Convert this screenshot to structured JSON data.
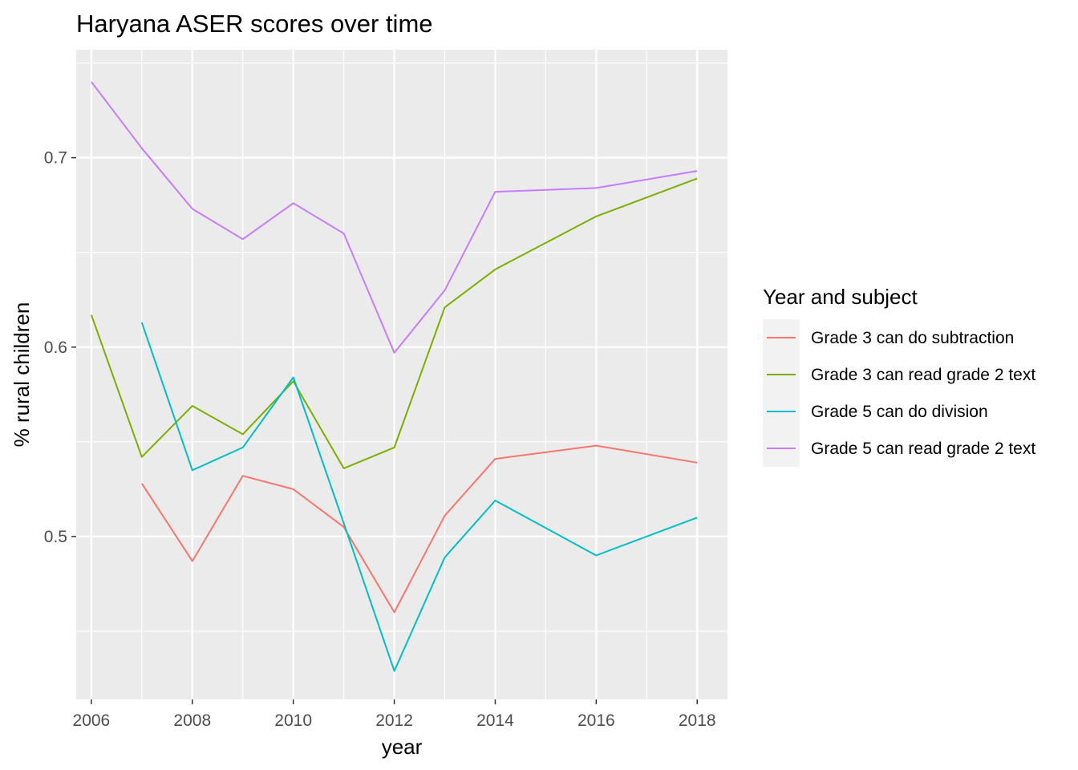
{
  "chart_data": {
    "type": "line",
    "title": "Haryana ASER scores over time",
    "xlabel": "year",
    "ylabel": "% rural children",
    "xlim": [
      2005.7,
      2018.6
    ],
    "ylim": [
      0.414,
      0.757
    ],
    "x_ticks": [
      2006,
      2008,
      2010,
      2012,
      2014,
      2016,
      2018
    ],
    "x_tick_labels": [
      "2006",
      "2008",
      "2010",
      "2012",
      "2014",
      "2016",
      "2018"
    ],
    "y_ticks": [
      0.5,
      0.6,
      0.7
    ],
    "y_tick_labels": [
      "0.5",
      "0.6",
      "0.7"
    ],
    "grid": true,
    "panel_background": "#ebebeb",
    "legend": {
      "title": "Year and subject",
      "position": "right"
    },
    "series": [
      {
        "name": "Grade 3 can do subtraction",
        "color": "#f8766d",
        "x": [
          2007,
          2008,
          2009,
          2010,
          2011,
          2012,
          2013,
          2014,
          2016,
          2018
        ],
        "y": [
          0.528,
          0.487,
          0.532,
          0.525,
          0.505,
          0.46,
          0.511,
          0.541,
          0.548,
          0.539
        ]
      },
      {
        "name": "Grade 3 can read grade 2 text",
        "color": "#7cae00",
        "x": [
          2006,
          2007,
          2008,
          2009,
          2010,
          2011,
          2012,
          2013,
          2014,
          2016,
          2018
        ],
        "y": [
          0.617,
          0.542,
          0.569,
          0.554,
          0.582,
          0.536,
          0.547,
          0.621,
          0.641,
          0.669,
          0.689
        ]
      },
      {
        "name": "Grade 5 can do division",
        "color": "#00bfc4",
        "x": [
          2007,
          2008,
          2009,
          2010,
          2011,
          2012,
          2013,
          2014,
          2016,
          2018
        ],
        "y": [
          0.613,
          0.535,
          0.547,
          0.584,
          0.507,
          0.429,
          0.489,
          0.519,
          0.49,
          0.51
        ]
      },
      {
        "name": "Grade 5 can read grade 2 text",
        "color": "#c77cff",
        "x": [
          2006,
          2007,
          2008,
          2009,
          2010,
          2011,
          2012,
          2013,
          2014,
          2016,
          2018
        ],
        "y": [
          0.74,
          0.705,
          0.673,
          0.657,
          0.676,
          0.66,
          0.597,
          0.63,
          0.682,
          0.684,
          0.693
        ]
      }
    ]
  }
}
